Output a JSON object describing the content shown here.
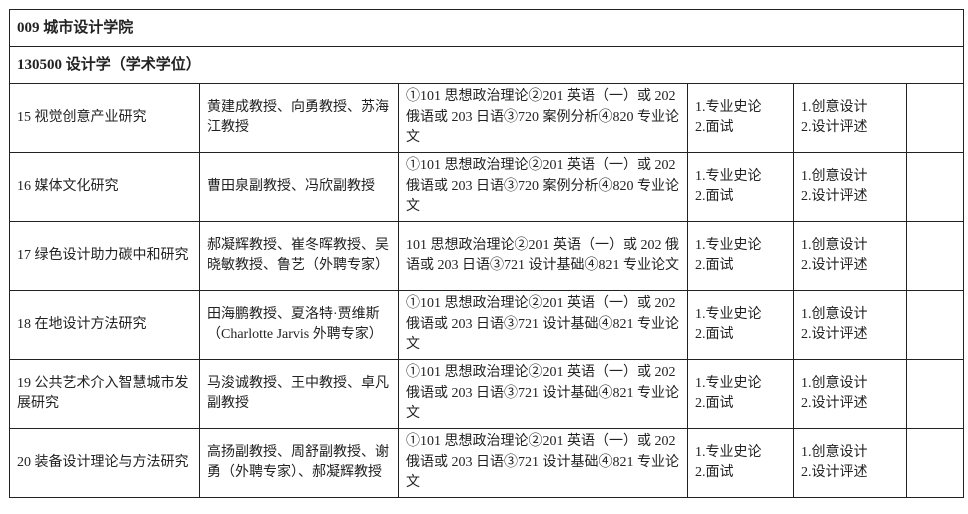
{
  "college": "009 城市设计学院",
  "major": "130500 设计学（学术学位）",
  "rows": [
    {
      "direction": "15 视觉创意产业研究",
      "advisors": "黄建成教授、向勇教授、苏海\n江教授",
      "exam": "①101 思想政治理论②201 英语（一）或 202\n俄语或 203 日语③720 案例分析④820 专业论\n文",
      "retest": "1.专业史论\n2.面试",
      "equal_add": "1.创意设计\n2.设计评述",
      "note": ""
    },
    {
      "direction": "16 媒体文化研究",
      "advisors": "曹田泉副教授、冯欣副教授",
      "exam": "①101 思想政治理论②201 英语（一）或 202\n俄语或 203 日语③720  案例分析④820 专业论\n文",
      "retest": "1.专业史论\n2.面试",
      "equal_add": "1.创意设计\n2.设计评述",
      "note": ""
    },
    {
      "direction": "17 绿色设计助力碳中和研究",
      "advisors": "郝凝辉教授、崔冬晖教授、吴\n晓敏教授、鲁艺（外聘专家）",
      "exam": "101 思想政治理论②201 英语（一）或 202 俄\n语或 203 日语③721 设计基础④821 专业论文",
      "retest": "1.专业史论\n2.面试",
      "equal_add": "1.创意设计\n2.设计评述",
      "note": ""
    },
    {
      "direction": "18 在地设计方法研究",
      "advisors": "田海鹏教授、夏洛特·贾维斯\n（Charlotte Jarvis  外聘专家）",
      "exam": "①101 思想政治理论②201 英语（一）或 202\n俄语或 203 日语③721 设计基础④821 专业论\n文",
      "retest": "1.专业史论\n2.面试",
      "equal_add": "1.创意设计\n2.设计评述",
      "note": ""
    },
    {
      "direction": "19 公共艺术介入智慧城市发\n展研究",
      "advisors": "马浚诚教授、王中教授、卓凡\n副教授",
      "exam": "①101 思想政治理论②201 英语（一）或 202\n俄语或 203 日语③721 设计基础④821 专业论\n文",
      "retest": "1.专业史论\n2.面试",
      "equal_add": "1.创意设计\n2.设计评述",
      "note": ""
    },
    {
      "direction": "20 装备设计理论与方法研究",
      "advisors": "高扬副教授、周舒副教授、谢\n勇（外聘专家）、郝凝辉教授",
      "exam": "①101 思想政治理论②201 英语（一）或 202\n俄语或 203 日语③721 设计基础④821 专业论\n文",
      "retest": "1.专业史论\n2.面试",
      "equal_add": "1.创意设计\n2.设计评述",
      "note": ""
    }
  ]
}
